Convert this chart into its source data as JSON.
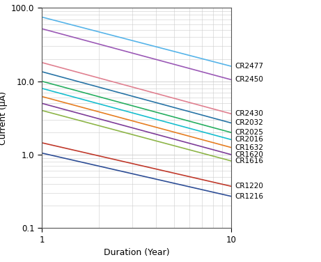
{
  "title": "",
  "xlabel": "Duration (Year)",
  "ylabel": "Current (μA)",
  "xlim": [
    1,
    10
  ],
  "ylim": [
    0.1,
    100.0
  ],
  "lines": [
    {
      "label": "CR2477",
      "color": "#56b4e9",
      "y_at_1": 75.0,
      "y_at_10": 16.0
    },
    {
      "label": "CR2450",
      "color": "#9b59b6",
      "y_at_1": 52.0,
      "y_at_10": 10.5
    },
    {
      "label": "CR2430",
      "color": "#e08090",
      "y_at_1": 18.0,
      "y_at_10": 3.6
    },
    {
      "label": "CR2032",
      "color": "#2874a6",
      "y_at_1": 13.5,
      "y_at_10": 2.7
    },
    {
      "label": "CR2025",
      "color": "#27ae60",
      "y_at_1": 10.0,
      "y_at_10": 2.0
    },
    {
      "label": "CR2016",
      "color": "#17becf",
      "y_at_1": 8.0,
      "y_at_10": 1.6
    },
    {
      "label": "CR1632",
      "color": "#e67e22",
      "y_at_1": 6.2,
      "y_at_10": 1.25
    },
    {
      "label": "CR1620",
      "color": "#7d3c98",
      "y_at_1": 5.0,
      "y_at_10": 1.0
    },
    {
      "label": "CR1616",
      "color": "#8db548",
      "y_at_1": 4.0,
      "y_at_10": 0.82
    },
    {
      "label": "CR1220",
      "color": "#c0392b",
      "y_at_1": 1.45,
      "y_at_10": 0.37
    },
    {
      "label": "CR1216",
      "color": "#2e4e96",
      "y_at_1": 1.05,
      "y_at_10": 0.27
    }
  ],
  "background_color": "#ffffff",
  "grid_color": "#cccccc",
  "label_fontsize": 9,
  "tick_fontsize": 8.5,
  "annotation_fontsize": 7.5
}
